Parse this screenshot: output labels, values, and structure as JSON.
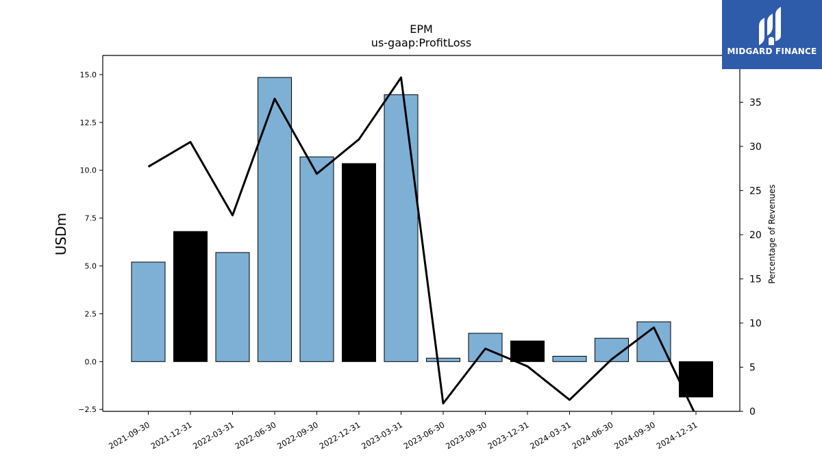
{
  "chart_data": {
    "type": "bar",
    "title": "EPM",
    "subtitle": "us-gaap:ProfitLoss",
    "ylabel": "USDm",
    "y2label": "Percentage of Revenues",
    "categories": [
      "2021-09-30",
      "2021-12-31",
      "2022-03-31",
      "2022-06-30",
      "2022-09-30",
      "2022-12-31",
      "2023-03-31",
      "2023-06-30",
      "2023-09-30",
      "2023-12-31",
      "2024-03-31",
      "2024-06-30",
      "2024-09-30",
      "2024-12-31"
    ],
    "values": [
      5.2,
      6.8,
      5.7,
      14.85,
      10.7,
      10.35,
      13.95,
      0.18,
      1.48,
      1.08,
      0.28,
      1.22,
      2.08,
      -1.85
    ],
    "bar_colors": [
      "#7eb0d5",
      "#000000",
      "#7eb0d5",
      "#7eb0d5",
      "#7eb0d5",
      "#000000",
      "#7eb0d5",
      "#7eb0d5",
      "#7eb0d5",
      "#000000",
      "#7eb0d5",
      "#7eb0d5",
      "#7eb0d5",
      "#000000"
    ],
    "line_series": {
      "values": [
        27.7,
        30.5,
        22.2,
        35.4,
        26.9,
        30.8,
        37.8,
        0.9,
        7.1,
        5.1,
        1.3,
        5.9,
        9.5,
        -0.5
      ]
    },
    "ylim": [
      -2.6,
      16.0
    ],
    "y2lim": [
      0,
      40.3
    ],
    "yticks": [
      "−2.5",
      "0.0",
      "2.5",
      "5.0",
      "7.5",
      "10.0",
      "12.5",
      "15.0"
    ],
    "y2ticks": [
      "0",
      "5",
      "10",
      "15",
      "20",
      "25",
      "30",
      "35"
    ],
    "grid": false
  },
  "brand": {
    "name": "MIDGARD FINANCE",
    "color": "#2f5bab"
  }
}
